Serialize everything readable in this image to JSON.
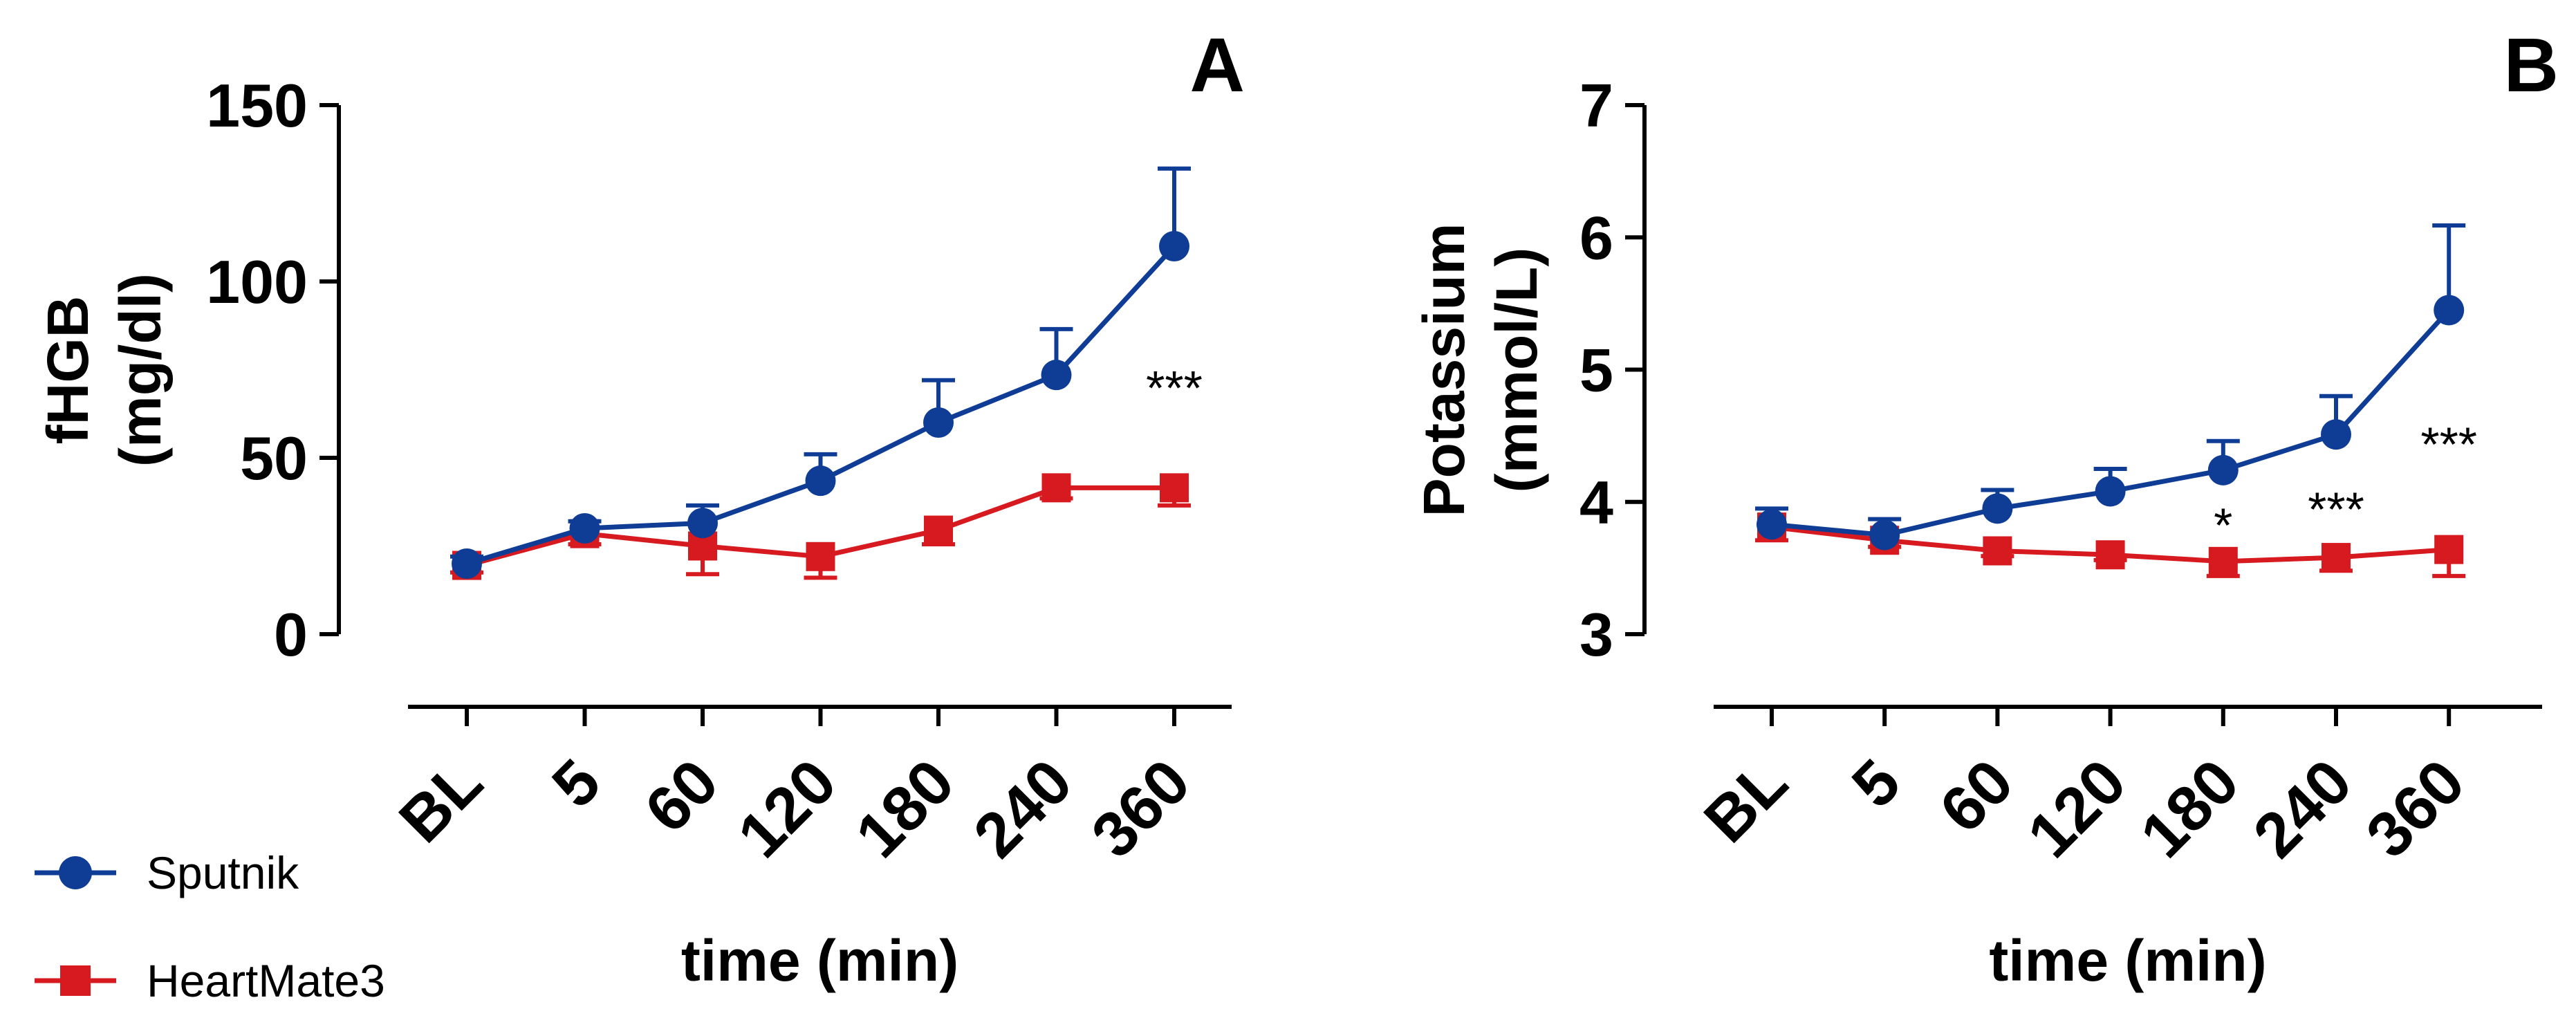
{
  "colors": {
    "sputnik": "#0f3d96",
    "heartmate3": "#d71920",
    "axis": "#000000"
  },
  "legend": {
    "position": "bottom-left",
    "items": [
      {
        "label": "Sputnik",
        "marker": "circle",
        "color": "#0f3d96"
      },
      {
        "label": "HeartMate3",
        "marker": "square",
        "color": "#d71920"
      }
    ]
  },
  "chart_data": [
    {
      "type": "line",
      "panel": "A",
      "categories": [
        "BL",
        "5",
        "60",
        "120",
        "180",
        "240",
        "360"
      ],
      "xlabel": "time (min)",
      "ylabel_lines": [
        "fHGB",
        "(mg/dl)"
      ],
      "ylim": [
        0,
        150
      ],
      "yticks": [
        0,
        50,
        100,
        150
      ],
      "series": [
        {
          "name": "Sputnik",
          "marker": "circle",
          "color": "#0f3d96",
          "values": [
            20,
            30,
            31.5,
            43.5,
            60,
            73.5,
            110
          ],
          "errors_up": [
            2,
            2,
            5,
            7.5,
            12,
            13,
            22
          ]
        },
        {
          "name": "HeartMate3",
          "marker": "square",
          "color": "#d71920",
          "values": [
            19.5,
            28.5,
            25,
            22,
            29.5,
            41.5,
            41.5
          ],
          "errors_down": [
            2,
            3,
            8,
            6,
            4,
            3,
            5
          ]
        }
      ],
      "annotations": [
        {
          "category_index": 6,
          "value": 70,
          "text": "***"
        }
      ]
    },
    {
      "type": "line",
      "panel": "B",
      "categories": [
        "BL",
        "5",
        "60",
        "120",
        "180",
        "240",
        "360"
      ],
      "xlabel": "time (min)",
      "ylabel_lines": [
        "Potassium",
        "(mmol/L)"
      ],
      "ylim": [
        3,
        7
      ],
      "yticks": [
        3,
        4,
        5,
        6,
        7
      ],
      "series": [
        {
          "name": "Sputnik",
          "marker": "circle",
          "color": "#0f3d96",
          "values": [
            3.83,
            3.75,
            3.95,
            4.08,
            4.24,
            4.51,
            5.45
          ],
          "errors_up": [
            0.12,
            0.12,
            0.14,
            0.17,
            0.22,
            0.29,
            0.64
          ]
        },
        {
          "name": "HeartMate3",
          "marker": "square",
          "color": "#d71920",
          "values": [
            3.81,
            3.71,
            3.63,
            3.6,
            3.55,
            3.58,
            3.64
          ],
          "errors_down": [
            0.1,
            0.05,
            0.04,
            0.04,
            0.11,
            0.1,
            0.2
          ]
        }
      ],
      "annotations": [
        {
          "category_index": 4,
          "value": 3.83,
          "text": "*"
        },
        {
          "category_index": 5,
          "value": 3.95,
          "text": "***"
        },
        {
          "category_index": 6,
          "value": 4.44,
          "text": "***"
        }
      ]
    }
  ]
}
